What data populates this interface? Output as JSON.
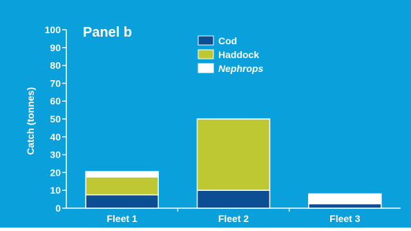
{
  "chart_data": {
    "type": "bar",
    "stacked": true,
    "title": "Panel b",
    "xlabel": "",
    "ylabel": "Catch (tonnes)",
    "ylim": [
      0,
      100
    ],
    "yticks": [
      0,
      10,
      20,
      30,
      40,
      50,
      60,
      70,
      80,
      90,
      100
    ],
    "grid": false,
    "legend_position": "top-center",
    "categories": [
      "Fleet 1",
      "Fleet 2",
      "Fleet 3"
    ],
    "series": [
      {
        "name": "Cod",
        "values": [
          7.5,
          10,
          2.5
        ],
        "color": "#0b4e93"
      },
      {
        "name": "Haddock",
        "values": [
          10,
          40,
          0
        ],
        "color": "#bdc832"
      },
      {
        "name": "Nephrops",
        "values": [
          3,
          0,
          5.5
        ],
        "color": "#ffffff",
        "italic": true
      }
    ],
    "colors": {
      "background": "#0aa0dc",
      "axis": "#ffffff",
      "bar_outline": "#ffffff"
    }
  }
}
